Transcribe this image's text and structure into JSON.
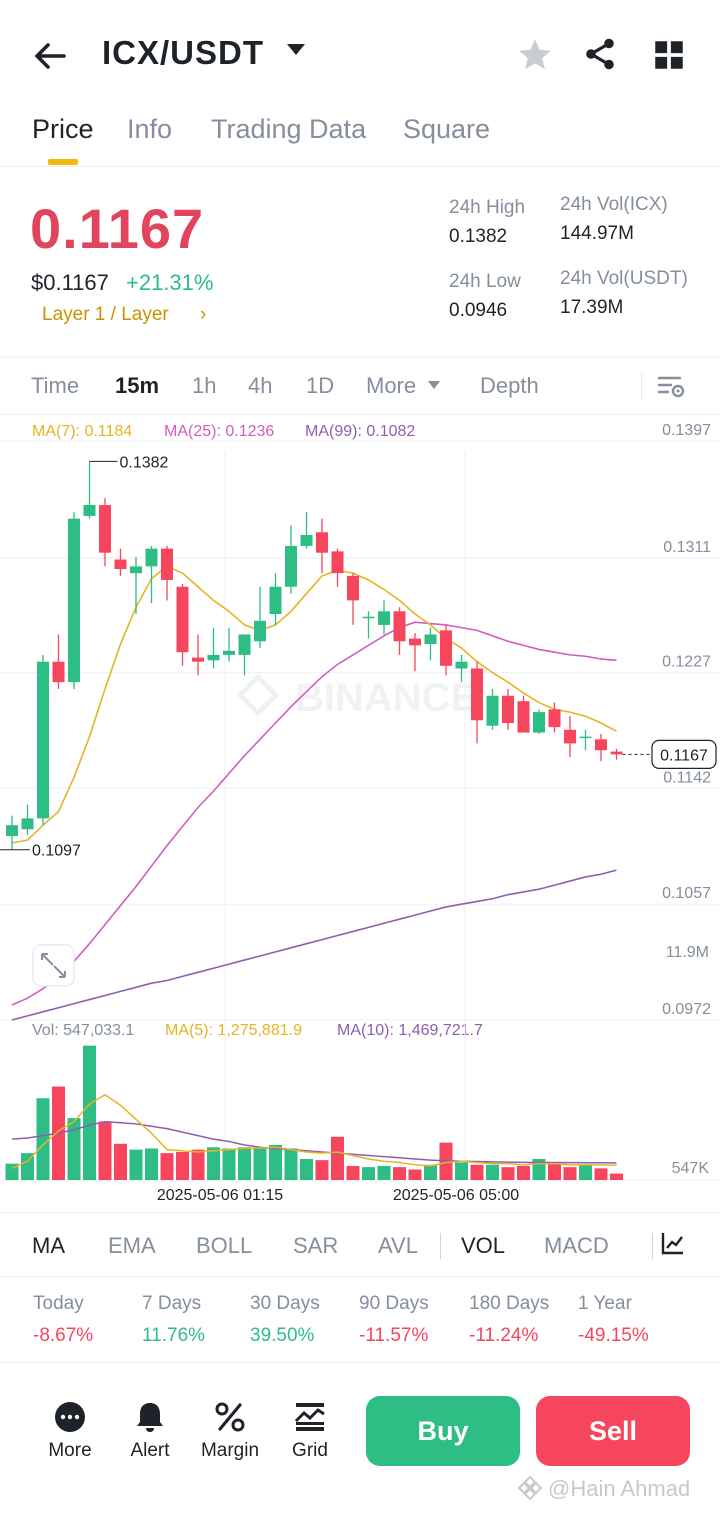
{
  "header": {
    "pair": "ICX/USDT"
  },
  "tabs": [
    {
      "label": "Price"
    },
    {
      "label": "Info"
    },
    {
      "label": "Trading Data"
    },
    {
      "label": "Square"
    }
  ],
  "price": {
    "last": "0.1167",
    "usd": "$0.1167",
    "change": "+21.31%",
    "tag": "Layer 1 / Layer",
    "chevron": "›"
  },
  "stats": {
    "high_label": "24h High",
    "high": "0.1382",
    "low_label": "24h Low",
    "low": "0.0946",
    "vol_base_label": "24h Vol(ICX)",
    "vol_base": "144.97M",
    "vol_quote_label": "24h Vol(USDT)",
    "vol_quote": "17.39M"
  },
  "timeframes": [
    "Time",
    "15m",
    "1h",
    "4h",
    "1D",
    "More",
    "Depth"
  ],
  "timeframe_selected": "15m",
  "ma_legend": {
    "ma7": "MA(7): 0.1184",
    "ma25": "MA(25): 0.1236",
    "ma99": "MA(99): 0.1082"
  },
  "vol_legend": {
    "vol": "Vol: 547,033.1",
    "ma5": "MA(5): 1,275,881.9",
    "ma10": "MA(10): 1,469,721.7"
  },
  "colors": {
    "up": "#2ebd85",
    "down": "#f6465d",
    "ma7": "#e6b422",
    "ma25": "#d35dbe",
    "ma99": "#8e5fb0",
    "accent": "#f0b90b"
  },
  "chart_data": {
    "type": "candlestick",
    "y_axis_labels": [
      "0.1397",
      "0.1311",
      "0.1227",
      "0.1142",
      "0.1057",
      "0.0972"
    ],
    "ylim": [
      0.0972,
      0.1397
    ],
    "current_price_label": "0.1167",
    "high_marker": "0.1382",
    "low_marker": "0.1097",
    "x_labels": [
      "2025-05-06 01:15",
      "2025-05-06 05:00"
    ],
    "candles": [
      {
        "o": 0.1107,
        "h": 0.1122,
        "l": 0.1097,
        "c": 0.1115
      },
      {
        "o": 0.1112,
        "h": 0.113,
        "l": 0.1108,
        "c": 0.112
      },
      {
        "o": 0.112,
        "h": 0.124,
        "l": 0.1115,
        "c": 0.1235
      },
      {
        "o": 0.1235,
        "h": 0.1255,
        "l": 0.1215,
        "c": 0.122
      },
      {
        "o": 0.122,
        "h": 0.1345,
        "l": 0.1215,
        "c": 0.134
      },
      {
        "o": 0.1342,
        "h": 0.1382,
        "l": 0.134,
        "c": 0.135
      },
      {
        "o": 0.135,
        "h": 0.1355,
        "l": 0.1305,
        "c": 0.1315
      },
      {
        "o": 0.131,
        "h": 0.1318,
        "l": 0.1298,
        "c": 0.1303
      },
      {
        "o": 0.13,
        "h": 0.1312,
        "l": 0.127,
        "c": 0.1305
      },
      {
        "o": 0.1305,
        "h": 0.132,
        "l": 0.1278,
        "c": 0.1318
      },
      {
        "o": 0.1318,
        "h": 0.132,
        "l": 0.128,
        "c": 0.1295
      },
      {
        "o": 0.129,
        "h": 0.1292,
        "l": 0.1232,
        "c": 0.1242
      },
      {
        "o": 0.1238,
        "h": 0.1255,
        "l": 0.1225,
        "c": 0.1235
      },
      {
        "o": 0.1236,
        "h": 0.126,
        "l": 0.123,
        "c": 0.124
      },
      {
        "o": 0.124,
        "h": 0.126,
        "l": 0.1235,
        "c": 0.1243
      },
      {
        "o": 0.124,
        "h": 0.1255,
        "l": 0.1225,
        "c": 0.1255
      },
      {
        "o": 0.125,
        "h": 0.129,
        "l": 0.1245,
        "c": 0.1265
      },
      {
        "o": 0.127,
        "h": 0.13,
        "l": 0.1262,
        "c": 0.129
      },
      {
        "o": 0.129,
        "h": 0.1335,
        "l": 0.1285,
        "c": 0.132
      },
      {
        "o": 0.132,
        "h": 0.1345,
        "l": 0.1318,
        "c": 0.1328
      },
      {
        "o": 0.133,
        "h": 0.134,
        "l": 0.13,
        "c": 0.1315
      },
      {
        "o": 0.1316,
        "h": 0.1318,
        "l": 0.129,
        "c": 0.13
      },
      {
        "o": 0.1298,
        "h": 0.13,
        "l": 0.1262,
        "c": 0.128
      },
      {
        "o": 0.1268,
        "h": 0.1272,
        "l": 0.1252,
        "c": 0.1268
      },
      {
        "o": 0.1262,
        "h": 0.128,
        "l": 0.1255,
        "c": 0.1272
      },
      {
        "o": 0.1272,
        "h": 0.1275,
        "l": 0.124,
        "c": 0.125
      },
      {
        "o": 0.1252,
        "h": 0.1256,
        "l": 0.1228,
        "c": 0.1247
      },
      {
        "o": 0.1248,
        "h": 0.126,
        "l": 0.1236,
        "c": 0.1255
      },
      {
        "o": 0.1258,
        "h": 0.1262,
        "l": 0.1225,
        "c": 0.1232
      },
      {
        "o": 0.123,
        "h": 0.124,
        "l": 0.122,
        "c": 0.1235
      },
      {
        "o": 0.123,
        "h": 0.1235,
        "l": 0.1175,
        "c": 0.1192
      },
      {
        "o": 0.1188,
        "h": 0.1215,
        "l": 0.1185,
        "c": 0.121
      },
      {
        "o": 0.121,
        "h": 0.1215,
        "l": 0.1185,
        "c": 0.119
      },
      {
        "o": 0.1206,
        "h": 0.121,
        "l": 0.1185,
        "c": 0.1183
      },
      {
        "o": 0.1183,
        "h": 0.12,
        "l": 0.1182,
        "c": 0.1198
      },
      {
        "o": 0.12,
        "h": 0.1205,
        "l": 0.1183,
        "c": 0.1187
      },
      {
        "o": 0.1185,
        "h": 0.1195,
        "l": 0.1165,
        "c": 0.1175
      },
      {
        "o": 0.118,
        "h": 0.1185,
        "l": 0.117,
        "c": 0.118
      },
      {
        "o": 0.1178,
        "h": 0.1182,
        "l": 0.1162,
        "c": 0.117
      },
      {
        "o": 0.1169,
        "h": 0.1171,
        "l": 0.1163,
        "c": 0.1167
      }
    ],
    "ma7": [
      0.1102,
      0.1104,
      0.1115,
      0.1125,
      0.115,
      0.118,
      0.1215,
      0.1248,
      0.1275,
      0.1296,
      0.1305,
      0.13,
      0.129,
      0.128,
      0.1272,
      0.1262,
      0.1258,
      0.1262,
      0.1272,
      0.1285,
      0.1298,
      0.1302,
      0.13,
      0.1295,
      0.1288,
      0.128,
      0.127,
      0.1262,
      0.1252,
      0.1245,
      0.1235,
      0.1227,
      0.122,
      0.1212,
      0.1205,
      0.12,
      0.1198,
      0.1195,
      0.119,
      0.1184
    ],
    "ma25": [
      0.0983,
      0.0988,
      0.0995,
      0.1003,
      0.1015,
      0.1028,
      0.1042,
      0.1056,
      0.107,
      0.1085,
      0.11,
      0.1114,
      0.1128,
      0.114,
      0.1153,
      0.1166,
      0.1178,
      0.119,
      0.1202,
      0.1213,
      0.1224,
      0.1233,
      0.124,
      0.1247,
      0.1254,
      0.126,
      0.1264,
      0.1263,
      0.1262,
      0.126,
      0.1258,
      0.1254,
      0.125,
      0.1247,
      0.1244,
      0.1242,
      0.124,
      0.1239,
      0.1237,
      0.1236
    ],
    "ma99": [
      0.0972,
      0.0975,
      0.0978,
      0.0981,
      0.0984,
      0.0987,
      0.099,
      0.0993,
      0.0996,
      0.0999,
      0.1001,
      0.1004,
      0.1007,
      0.101,
      0.1013,
      0.1016,
      0.1019,
      0.1022,
      0.1025,
      0.1028,
      0.1031,
      0.1034,
      0.1037,
      0.104,
      0.1043,
      0.1046,
      0.1049,
      0.1052,
      0.1055,
      0.1057,
      0.1059,
      0.1061,
      0.1064,
      0.1066,
      0.1068,
      0.1071,
      0.1074,
      0.1077,
      0.1079,
      0.1082
    ],
    "volume": {
      "y_axis_labels": [
        "11.9M",
        "547K"
      ],
      "ylim": [
        0,
        11900000
      ],
      "values": [
        1400000,
        2300000,
        7000000,
        8000000,
        5300000,
        11500000,
        5000000,
        3100000,
        2600000,
        2700000,
        2300000,
        2400000,
        2600000,
        2800000,
        2700000,
        2800000,
        2800000,
        3000000,
        2700000,
        1800000,
        1700000,
        3700000,
        1200000,
        1100000,
        1200000,
        1100000,
        900000,
        1300000,
        3200000,
        1500000,
        1300000,
        1300000,
        1100000,
        1200000,
        1800000,
        1400000,
        1100000,
        1300000,
        1000000,
        547033
      ]
    },
    "vol_ma5": [
      1000000,
      1600000,
      3000000,
      4200000,
      5000000,
      6500000,
      7300000,
      6400000,
      5200000,
      4000000,
      2600000,
      2500000,
      2400000,
      2500000,
      2600000,
      2700000,
      2750000,
      2800000,
      2600000,
      2400000,
      2300000,
      2400000,
      2100000,
      1800000,
      1600000,
      1500000,
      1300000,
      1200000,
      1500000,
      1600000,
      1500000,
      1400000,
      1400000,
      1300000,
      1400000,
      1400000,
      1300000,
      1300000,
      1300000,
      1275882
    ],
    "vol_ma10": [
      3500000,
      3600000,
      3800000,
      4000000,
      4300000,
      4700000,
      5000000,
      4900000,
      4800000,
      4600000,
      4400000,
      4100000,
      3800000,
      3500000,
      3300000,
      3000000,
      2800000,
      2700000,
      2600000,
      2500000,
      2400000,
      2300000,
      2200000,
      2100000,
      2000000,
      1900000,
      1800000,
      1700000,
      1650000,
      1600000,
      1580000,
      1550000,
      1530000,
      1510000,
      1500000,
      1495000,
      1485000,
      1480000,
      1475000,
      1469722
    ]
  },
  "indicators": [
    "MA",
    "EMA",
    "BOLL",
    "SAR",
    "AVL",
    "VOL",
    "MACD"
  ],
  "performance": [
    {
      "label": "Today",
      "value": "-8.67%",
      "dir": "down"
    },
    {
      "label": "7 Days",
      "value": "11.76%",
      "dir": "up"
    },
    {
      "label": "30 Days",
      "value": "39.50%",
      "dir": "up"
    },
    {
      "label": "90 Days",
      "value": "-11.57%",
      "dir": "down"
    },
    {
      "label": "180 Days",
      "value": "-11.24%",
      "dir": "down"
    },
    {
      "label": "1 Year",
      "value": "-49.15%",
      "dir": "down"
    }
  ],
  "bottom_nav": {
    "more": "More",
    "alert": "Alert",
    "margin": "Margin",
    "grid": "Grid",
    "buy": "Buy",
    "sell": "Sell"
  },
  "watermark": {
    "author": "@Hain Ahmad",
    "chart_brand": "BINANCE"
  }
}
